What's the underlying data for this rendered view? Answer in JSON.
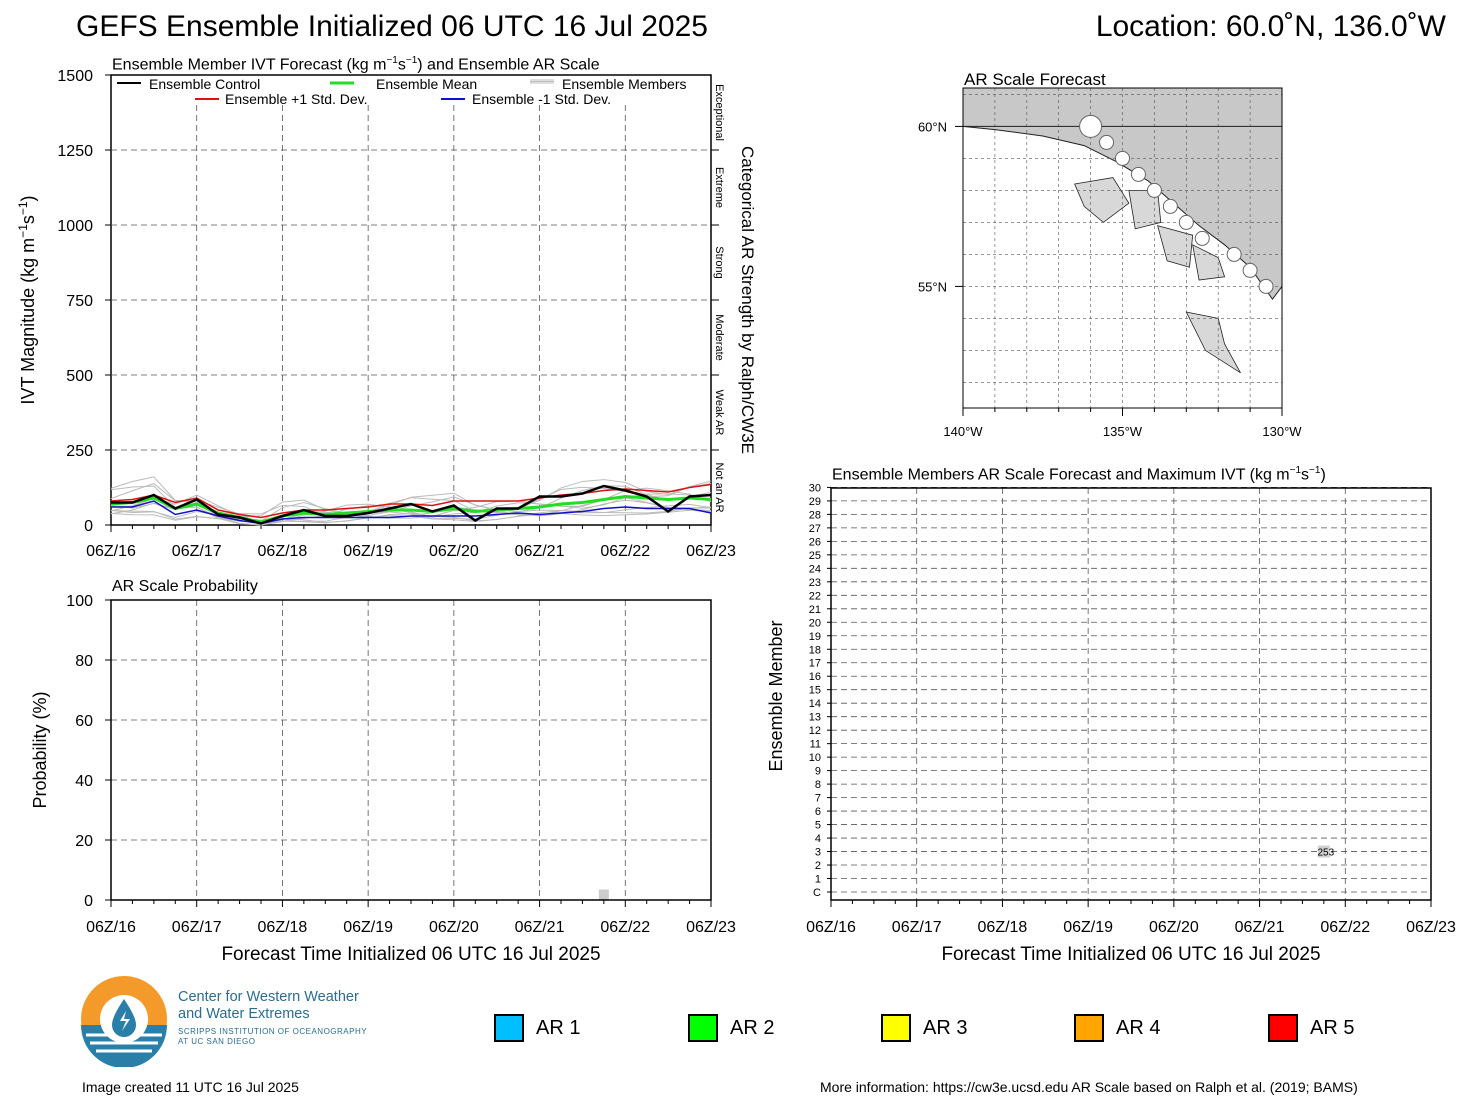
{
  "header": {
    "title": "GEFS Ensemble Initialized 06 UTC 16 Jul 2025",
    "location": "Location: 60.0˚N, 136.0˚W"
  },
  "colors": {
    "control": "#000000",
    "mean": "#22dd22",
    "plus_std": "#dd1111",
    "minus_std": "#1111cc",
    "members": "#bbbbbb",
    "ar1": "#00bfff",
    "ar2": "#00ff00",
    "ar3": "#ffff00",
    "ar4": "#ffa500",
    "ar5": "#ff0000"
  },
  "time_labels": [
    "06Z/16",
    "06Z/17",
    "06Z/18",
    "06Z/19",
    "06Z/20",
    "06Z/21",
    "06Z/22",
    "06Z/23"
  ],
  "chart_data": [
    {
      "id": "ivt",
      "type": "line",
      "title": "Ensemble Member IVT Forecast (kg m⁻¹s⁻¹) and Ensemble AR Scale",
      "ylabel": "IVT Magnitude (kg m⁻¹s⁻¹)",
      "right_label": "Categorical AR Strength by Ralph/CW3E",
      "categories_right": [
        "Exceptional",
        "Extreme",
        "Strong",
        "Moderate",
        "Weak AR",
        "Not an AR"
      ],
      "ylim": [
        0,
        1500
      ],
      "yticks": [
        0,
        250,
        500,
        750,
        1000,
        1250,
        1500
      ],
      "x_hours": [
        0,
        168
      ],
      "legend": {
        "control": "Ensemble Control",
        "mean": "Ensemble Mean",
        "members": "Ensemble Members",
        "plus": "Ensemble +1 Std. Dev.",
        "minus": "Ensemble -1 Std. Dev."
      },
      "grid": true,
      "series": [
        {
          "name": "Ensemble Control",
          "color": "#000000",
          "x": [
            0,
            6,
            12,
            18,
            24,
            30,
            36,
            42,
            48,
            54,
            60,
            66,
            72,
            78,
            84,
            90,
            96,
            102,
            108,
            114,
            120,
            126,
            132,
            138,
            144,
            150,
            156,
            162,
            168
          ],
          "values": [
            75,
            75,
            100,
            55,
            85,
            35,
            25,
            5,
            30,
            50,
            30,
            30,
            40,
            55,
            70,
            45,
            65,
            15,
            55,
            55,
            95,
            95,
            105,
            130,
            115,
            95,
            45,
            95,
            100
          ]
        },
        {
          "name": "Ensemble Mean",
          "color": "#22dd22",
          "x": [
            0,
            6,
            12,
            18,
            24,
            30,
            36,
            42,
            48,
            54,
            60,
            66,
            72,
            78,
            84,
            90,
            96,
            102,
            108,
            114,
            120,
            126,
            132,
            138,
            144,
            150,
            156,
            162,
            168
          ],
          "values": [
            70,
            75,
            90,
            55,
            70,
            40,
            25,
            10,
            30,
            40,
            35,
            40,
            45,
            50,
            50,
            45,
            55,
            45,
            50,
            55,
            60,
            70,
            75,
            85,
            95,
            90,
            85,
            90,
            85
          ]
        },
        {
          "name": "Ensemble +1 Std. Dev.",
          "color": "#dd1111",
          "x": [
            0,
            6,
            12,
            18,
            24,
            30,
            36,
            42,
            48,
            54,
            60,
            66,
            72,
            78,
            84,
            90,
            96,
            102,
            108,
            114,
            120,
            126,
            132,
            138,
            144,
            150,
            156,
            162,
            168
          ],
          "values": [
            80,
            85,
            100,
            75,
            90,
            50,
            35,
            25,
            40,
            50,
            50,
            55,
            60,
            70,
            70,
            65,
            80,
            80,
            80,
            80,
            90,
            100,
            105,
            115,
            120,
            115,
            110,
            125,
            135
          ]
        },
        {
          "name": "Ensemble -1 Std. Dev.",
          "color": "#1111cc",
          "x": [
            0,
            6,
            12,
            18,
            24,
            30,
            36,
            42,
            48,
            54,
            60,
            66,
            72,
            78,
            84,
            90,
            96,
            102,
            108,
            114,
            120,
            126,
            132,
            138,
            144,
            150,
            156,
            162,
            168
          ],
          "values": [
            60,
            60,
            80,
            35,
            50,
            30,
            15,
            5,
            20,
            25,
            25,
            25,
            25,
            25,
            30,
            30,
            30,
            30,
            35,
            40,
            35,
            40,
            45,
            55,
            60,
            55,
            55,
            55,
            40
          ]
        }
      ]
    },
    {
      "id": "prob",
      "type": "bar",
      "title": "AR Scale Probability",
      "ylabel": "Probability (%)",
      "xlabel": "Forecast Time Initialized 06 UTC 16 Jul 2025",
      "ylim": [
        0,
        100
      ],
      "yticks": [
        0,
        20,
        40,
        60,
        80,
        100
      ],
      "grid": true,
      "bars": [
        {
          "x": 138,
          "value": 3.5,
          "color": "#cccccc"
        }
      ]
    },
    {
      "id": "members",
      "type": "scatter",
      "title": "Ensemble Members AR Scale Forecast and Maximum IVT (kg m⁻¹s⁻¹)",
      "ylabel": "Ensemble Member",
      "xlabel": "Forecast Time Initialized 06 UTC 16 Jul 2025",
      "members": [
        "C",
        "1",
        "2",
        "3",
        "4",
        "5",
        "6",
        "7",
        "8",
        "9",
        "10",
        "11",
        "12",
        "13",
        "14",
        "15",
        "16",
        "17",
        "18",
        "19",
        "20",
        "21",
        "22",
        "23",
        "24",
        "25",
        "26",
        "27",
        "28",
        "29",
        "30"
      ],
      "points": [
        {
          "member": "3",
          "x": 138,
          "label": "253"
        }
      ]
    },
    {
      "id": "map",
      "type": "scatter",
      "title": "AR Scale Forecast",
      "lon_labels": [
        "140°W",
        "135°W",
        "130°W"
      ],
      "lat_labels": [
        "60°N",
        "55°N"
      ],
      "points": [
        {
          "lon": -136.0,
          "lat": 60.0
        },
        {
          "lon": -135.5,
          "lat": 59.5
        },
        {
          "lon": -135.0,
          "lat": 59.0
        },
        {
          "lon": -134.5,
          "lat": 58.5
        },
        {
          "lon": -134.0,
          "lat": 58.0
        },
        {
          "lon": -133.5,
          "lat": 57.5
        },
        {
          "lon": -133.0,
          "lat": 57.0
        },
        {
          "lon": -132.5,
          "lat": 56.5
        },
        {
          "lon": -131.5,
          "lat": 56.0
        },
        {
          "lon": -131.0,
          "lat": 55.5
        },
        {
          "lon": -130.5,
          "lat": 55.0
        }
      ]
    }
  ],
  "logo": {
    "line1": "Center for Western Weather",
    "line2": "and Water Extremes",
    "line3": "SCRIPPS INSTITUTION OF OCEANOGRAPHY",
    "line4": "AT UC SAN DIEGO"
  },
  "ar_legend": [
    "AR 1",
    "AR 2",
    "AR 3",
    "AR 4",
    "AR 5"
  ],
  "footer": {
    "created": "Image created 11 UTC 16 Jul 2025",
    "info": "More information: https://cw3e.ucsd.edu AR Scale based on Ralph et al. (2019; BAMS)"
  }
}
